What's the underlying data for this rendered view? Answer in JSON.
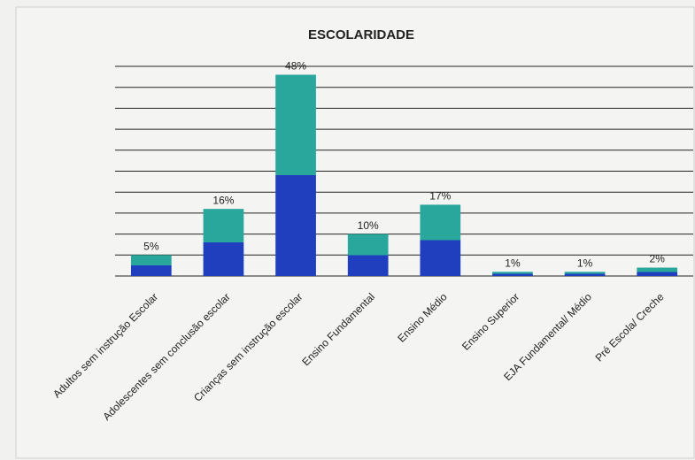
{
  "chart_data": {
    "type": "bar",
    "title": "ESCOLARIDADE",
    "categories": [
      "Adultos sem instrução Escolar",
      "Adolescentes sem conclusão escolar",
      "Crianças sem instrução escolar",
      "Ensino Fundamental",
      "Ensino Médio",
      "Ensino Superior",
      "EJA Fundamental/ Médio",
      "Pré Escola/ Creche"
    ],
    "values": [
      5,
      16,
      48,
      10,
      17,
      1,
      1,
      2
    ],
    "value_labels": [
      "5%",
      "16%",
      "48%",
      "10%",
      "17%",
      "1%",
      "1%",
      "2%"
    ],
    "colors": [
      "#2aa79d",
      "#1f3fbf"
    ],
    "ylim": [
      0,
      50
    ],
    "yticks": [
      0,
      5,
      10,
      15,
      20,
      25,
      30,
      35,
      40,
      45,
      50
    ],
    "grid": true
  }
}
